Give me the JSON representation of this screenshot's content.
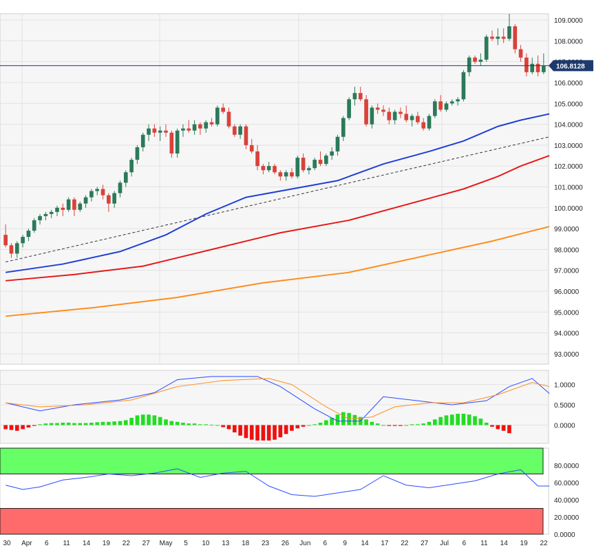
{
  "chart_data": [
    {
      "type": "candlestick",
      "instrument_axis_unit": "price",
      "ylim": [
        92.5,
        109.3
      ],
      "y_ticks": [
        "93.0000",
        "94.0000",
        "95.0000",
        "96.0000",
        "97.0000",
        "98.0000",
        "99.0000",
        "100.0000",
        "101.0000",
        "102.0000",
        "103.0000",
        "104.0000",
        "105.0000",
        "106.0000",
        "107.0000",
        "108.0000",
        "109.0000"
      ],
      "current_price_label": "106.8128",
      "current_price": 106.8128,
      "x_tick_labels": [
        "30",
        "Apr",
        "6",
        "11",
        "14",
        "19",
        "22",
        "27",
        "May",
        "5",
        "10",
        "13",
        "18",
        "23",
        "26",
        "Jun",
        "6",
        "9",
        "14",
        "17",
        "22",
        "27",
        "Jul",
        "6",
        "11",
        "14",
        "19",
        "22"
      ],
      "candles": [
        [
          98.7,
          99.2,
          98.1,
          98.2
        ],
        [
          98.2,
          98.3,
          97.6,
          97.8
        ],
        [
          97.8,
          98.4,
          97.6,
          98.3
        ],
        [
          98.3,
          98.7,
          98.1,
          98.6
        ],
        [
          98.6,
          99.0,
          98.4,
          98.9
        ],
        [
          98.9,
          99.5,
          98.8,
          99.4
        ],
        [
          99.4,
          99.7,
          99.2,
          99.6
        ],
        [
          99.6,
          99.8,
          99.4,
          99.7
        ],
        [
          99.7,
          99.9,
          99.5,
          99.8
        ],
        [
          99.8,
          100.1,
          99.6,
          100.0
        ],
        [
          100.0,
          100.2,
          99.6,
          99.9
        ],
        [
          99.9,
          100.5,
          99.8,
          100.4
        ],
        [
          100.4,
          100.5,
          99.6,
          99.9
        ],
        [
          99.9,
          100.3,
          99.8,
          100.2
        ],
        [
          100.2,
          100.6,
          100.0,
          100.5
        ],
        [
          100.5,
          100.9,
          100.3,
          100.8
        ],
        [
          100.8,
          101.0,
          100.6,
          100.9
        ],
        [
          100.9,
          101.1,
          100.4,
          100.6
        ],
        [
          100.6,
          100.7,
          99.8,
          100.2
        ],
        [
          100.2,
          100.8,
          100.0,
          100.7
        ],
        [
          100.7,
          101.3,
          100.5,
          101.2
        ],
        [
          101.2,
          101.8,
          101.0,
          101.7
        ],
        [
          101.7,
          102.4,
          101.5,
          102.3
        ],
        [
          102.3,
          103.0,
          102.1,
          102.9
        ],
        [
          102.9,
          103.6,
          102.7,
          103.5
        ],
        [
          103.5,
          104.0,
          103.2,
          103.8
        ],
        [
          103.8,
          104.0,
          103.4,
          103.6
        ],
        [
          103.6,
          103.9,
          103.2,
          103.7
        ],
        [
          103.7,
          104.0,
          103.4,
          103.6
        ],
        [
          103.6,
          103.7,
          102.4,
          102.6
        ],
        [
          102.6,
          103.8,
          102.4,
          103.7
        ],
        [
          103.7,
          104.0,
          103.4,
          103.8
        ],
        [
          103.8,
          104.2,
          103.6,
          103.7
        ],
        [
          103.7,
          104.2,
          103.5,
          104.0
        ],
        [
          104.0,
          104.1,
          103.5,
          103.8
        ],
        [
          103.8,
          104.2,
          103.6,
          104.1
        ],
        [
          104.1,
          104.3,
          103.9,
          104.0
        ],
        [
          104.0,
          104.9,
          103.9,
          104.8
        ],
        [
          104.8,
          105.0,
          104.5,
          104.6
        ],
        [
          104.6,
          104.8,
          103.8,
          103.9
        ],
        [
          103.9,
          104.0,
          103.4,
          103.5
        ],
        [
          103.5,
          104.0,
          103.3,
          103.9
        ],
        [
          103.9,
          104.0,
          102.8,
          103.0
        ],
        [
          103.0,
          103.3,
          102.6,
          102.7
        ],
        [
          102.7,
          103.0,
          101.8,
          102.0
        ],
        [
          102.0,
          102.1,
          101.6,
          101.8
        ],
        [
          101.8,
          102.2,
          101.7,
          102.0
        ],
        [
          102.0,
          102.1,
          101.6,
          101.7
        ],
        [
          101.7,
          101.8,
          101.3,
          101.5
        ],
        [
          101.5,
          101.8,
          101.3,
          101.7
        ],
        [
          101.7,
          101.9,
          101.4,
          101.5
        ],
        [
          101.5,
          102.5,
          101.4,
          102.4
        ],
        [
          102.4,
          102.6,
          101.7,
          101.8
        ],
        [
          101.8,
          102.0,
          101.6,
          101.9
        ],
        [
          101.9,
          102.4,
          101.8,
          102.3
        ],
        [
          102.3,
          102.7,
          102.0,
          102.1
        ],
        [
          102.1,
          102.6,
          102.0,
          102.5
        ],
        [
          102.5,
          102.9,
          102.3,
          102.7
        ],
        [
          102.7,
          103.5,
          102.5,
          103.4
        ],
        [
          103.4,
          104.4,
          103.2,
          104.3
        ],
        [
          104.3,
          105.3,
          104.2,
          105.2
        ],
        [
          105.2,
          105.8,
          104.9,
          105.5
        ],
        [
          105.5,
          105.8,
          105.1,
          105.2
        ],
        [
          105.2,
          105.4,
          103.9,
          104.0
        ],
        [
          104.0,
          104.9,
          103.8,
          104.8
        ],
        [
          104.8,
          105.0,
          104.5,
          104.7
        ],
        [
          104.7,
          104.9,
          104.4,
          104.6
        ],
        [
          104.6,
          104.8,
          104.0,
          104.2
        ],
        [
          104.2,
          104.7,
          104.0,
          104.6
        ],
        [
          104.6,
          104.8,
          104.3,
          104.5
        ],
        [
          104.5,
          104.9,
          104.1,
          104.2
        ],
        [
          104.2,
          104.5,
          103.9,
          104.4
        ],
        [
          104.4,
          104.6,
          104.0,
          104.1
        ],
        [
          104.1,
          104.3,
          103.7,
          103.8
        ],
        [
          103.8,
          104.5,
          103.7,
          104.4
        ],
        [
          104.4,
          105.2,
          104.3,
          105.1
        ],
        [
          105.1,
          105.4,
          104.6,
          104.7
        ],
        [
          104.7,
          105.1,
          104.6,
          105.0
        ],
        [
          105.0,
          105.2,
          104.9,
          105.1
        ],
        [
          105.1,
          105.3,
          104.9,
          105.2
        ],
        [
          105.2,
          106.6,
          105.1,
          106.5
        ],
        [
          106.5,
          107.3,
          106.3,
          107.2
        ],
        [
          107.2,
          107.3,
          106.9,
          107.0
        ],
        [
          107.0,
          107.4,
          106.8,
          107.1
        ],
        [
          107.1,
          108.3,
          107.0,
          108.2
        ],
        [
          108.2,
          108.5,
          108.0,
          108.1
        ],
        [
          108.1,
          108.6,
          107.8,
          108.2
        ],
        [
          108.2,
          108.6,
          107.9,
          108.1
        ],
        [
          108.1,
          109.3,
          108.0,
          108.7
        ],
        [
          108.7,
          108.8,
          107.4,
          107.6
        ],
        [
          107.6,
          107.8,
          107.0,
          107.2
        ],
        [
          107.2,
          107.4,
          106.3,
          106.5
        ],
        [
          106.5,
          107.2,
          106.4,
          106.9
        ],
        [
          106.9,
          107.3,
          106.3,
          106.5
        ],
        [
          106.5,
          107.4,
          106.4,
          106.8
        ]
      ],
      "moving_averages": [
        {
          "color": "#1f3fd6",
          "values": [
            [
              0,
              96.9
            ],
            [
              10,
              97.3
            ],
            [
              20,
              97.9
            ],
            [
              28,
              98.7
            ],
            [
              35,
              99.7
            ],
            [
              42,
              100.5
            ],
            [
              50,
              100.9
            ],
            [
              58,
              101.3
            ],
            [
              66,
              102.1
            ],
            [
              74,
              102.7
            ],
            [
              80,
              103.2
            ],
            [
              86,
              103.9
            ],
            [
              90,
              104.2
            ],
            [
              95,
              104.5
            ]
          ]
        },
        {
          "color": "#e81818",
          "values": [
            [
              0,
              96.5
            ],
            [
              12,
              96.8
            ],
            [
              24,
              97.2
            ],
            [
              36,
              98.0
            ],
            [
              48,
              98.8
            ],
            [
              60,
              99.4
            ],
            [
              72,
              100.3
            ],
            [
              80,
              100.9
            ],
            [
              86,
              101.5
            ],
            [
              90,
              102.0
            ],
            [
              95,
              102.5
            ]
          ]
        },
        {
          "color": "#ff8c1a",
          "values": [
            [
              0,
              94.8
            ],
            [
              15,
              95.2
            ],
            [
              30,
              95.7
            ],
            [
              45,
              96.4
            ],
            [
              60,
              96.9
            ],
            [
              75,
              97.8
            ],
            [
              85,
              98.4
            ],
            [
              95,
              99.1
            ]
          ]
        },
        {
          "color": "#333333",
          "dashed": true,
          "values": [
            [
              0,
              97.4
            ],
            [
              95,
              103.4
            ]
          ]
        }
      ]
    },
    {
      "type": "line",
      "indicator": "oscillator",
      "y_ticks": [
        "1.0000",
        "0.5000",
        "0.0000"
      ],
      "ylim": [
        -0.45,
        1.35
      ],
      "series": [
        {
          "color": "#2b49ff",
          "values": [
            [
              0,
              0.55
            ],
            [
              6,
              0.35
            ],
            [
              12,
              0.5
            ],
            [
              20,
              0.62
            ],
            [
              26,
              0.8
            ],
            [
              30,
              1.12
            ],
            [
              36,
              1.2
            ],
            [
              44,
              1.2
            ],
            [
              48,
              0.95
            ],
            [
              54,
              0.4
            ],
            [
              58,
              0.1
            ],
            [
              62,
              0.1
            ],
            [
              66,
              0.7
            ],
            [
              72,
              0.6
            ],
            [
              78,
              0.5
            ],
            [
              84,
              0.6
            ],
            [
              88,
              0.95
            ],
            [
              92,
              1.15
            ],
            [
              95,
              0.78
            ]
          ]
        },
        {
          "color": "#ff8c1a",
          "values": [
            [
              0,
              0.55
            ],
            [
              6,
              0.45
            ],
            [
              14,
              0.5
            ],
            [
              22,
              0.62
            ],
            [
              30,
              0.95
            ],
            [
              38,
              1.1
            ],
            [
              46,
              1.15
            ],
            [
              50,
              1.0
            ],
            [
              56,
              0.45
            ],
            [
              60,
              0.15
            ],
            [
              64,
              0.2
            ],
            [
              68,
              0.45
            ],
            [
              74,
              0.55
            ],
            [
              80,
              0.55
            ],
            [
              86,
              0.75
            ],
            [
              92,
              1.05
            ],
            [
              95,
              0.95
            ]
          ]
        }
      ],
      "histogram": [
        -0.1,
        -0.12,
        -0.14,
        -0.1,
        -0.06,
        -0.02,
        0.02,
        0.04,
        0.05,
        0.05,
        0.06,
        0.06,
        0.05,
        0.05,
        0.05,
        0.06,
        0.07,
        0.08,
        0.08,
        0.09,
        0.1,
        0.12,
        0.18,
        0.24,
        0.26,
        0.26,
        0.24,
        0.2,
        0.14,
        0.1,
        0.08,
        0.06,
        0.04,
        0.04,
        0.02,
        0.02,
        0.01,
        0.0,
        -0.05,
        -0.1,
        -0.18,
        -0.26,
        -0.32,
        -0.36,
        -0.38,
        -0.38,
        -0.38,
        -0.36,
        -0.3,
        -0.22,
        -0.14,
        -0.08,
        -0.04,
        0.0,
        0.02,
        0.06,
        0.12,
        0.18,
        0.26,
        0.32,
        0.3,
        0.25,
        0.2,
        0.14,
        0.08,
        0.04,
        0.0,
        -0.02,
        -0.02,
        -0.02,
        0.0,
        0.02,
        0.02,
        0.04,
        0.08,
        0.14,
        0.2,
        0.24,
        0.26,
        0.28,
        0.28,
        0.26,
        0.22,
        0.16,
        0.06,
        -0.04,
        -0.1,
        -0.14,
        -0.2
      ]
    },
    {
      "type": "line",
      "indicator": "RSI",
      "y_ticks": [
        "80.0000",
        "60.0000",
        "40.0000",
        "20.0000",
        "0.0000"
      ],
      "ylim": [
        0,
        100
      ],
      "overbought": 70,
      "oversold": 30,
      "series": [
        {
          "color": "#2b49ff",
          "values": [
            [
              0,
              57
            ],
            [
              3,
              52
            ],
            [
              6,
              55
            ],
            [
              10,
              63
            ],
            [
              14,
              66
            ],
            [
              18,
              70
            ],
            [
              22,
              68
            ],
            [
              26,
              71
            ],
            [
              30,
              76
            ],
            [
              34,
              66
            ],
            [
              38,
              71
            ],
            [
              42,
              73
            ],
            [
              46,
              56
            ],
            [
              50,
              46
            ],
            [
              54,
              44
            ],
            [
              58,
              48
            ],
            [
              62,
              52
            ],
            [
              66,
              68
            ],
            [
              70,
              57
            ],
            [
              74,
              54
            ],
            [
              78,
              58
            ],
            [
              82,
              62
            ],
            [
              86,
              70
            ],
            [
              90,
              75
            ],
            [
              93,
              56
            ],
            [
              95,
              56
            ]
          ]
        }
      ]
    }
  ]
}
